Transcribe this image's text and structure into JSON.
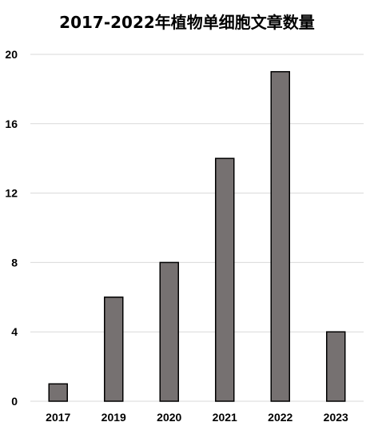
{
  "chart_data": {
    "type": "bar",
    "title": "2017-2022年植物单细胞文章数量",
    "xlabel": "",
    "ylabel": "",
    "categories": [
      "2017",
      "2019",
      "2020",
      "2021",
      "2022",
      "2023"
    ],
    "values": [
      1,
      6,
      8,
      14,
      19,
      4
    ],
    "ylim": [
      0,
      20
    ],
    "yticks": [
      0,
      4,
      8,
      12,
      16,
      20
    ],
    "grid": true,
    "legend": "none",
    "bar_color": "#767171",
    "bar_edge_color": "#000000",
    "grid_color": "#d9d9d9"
  }
}
